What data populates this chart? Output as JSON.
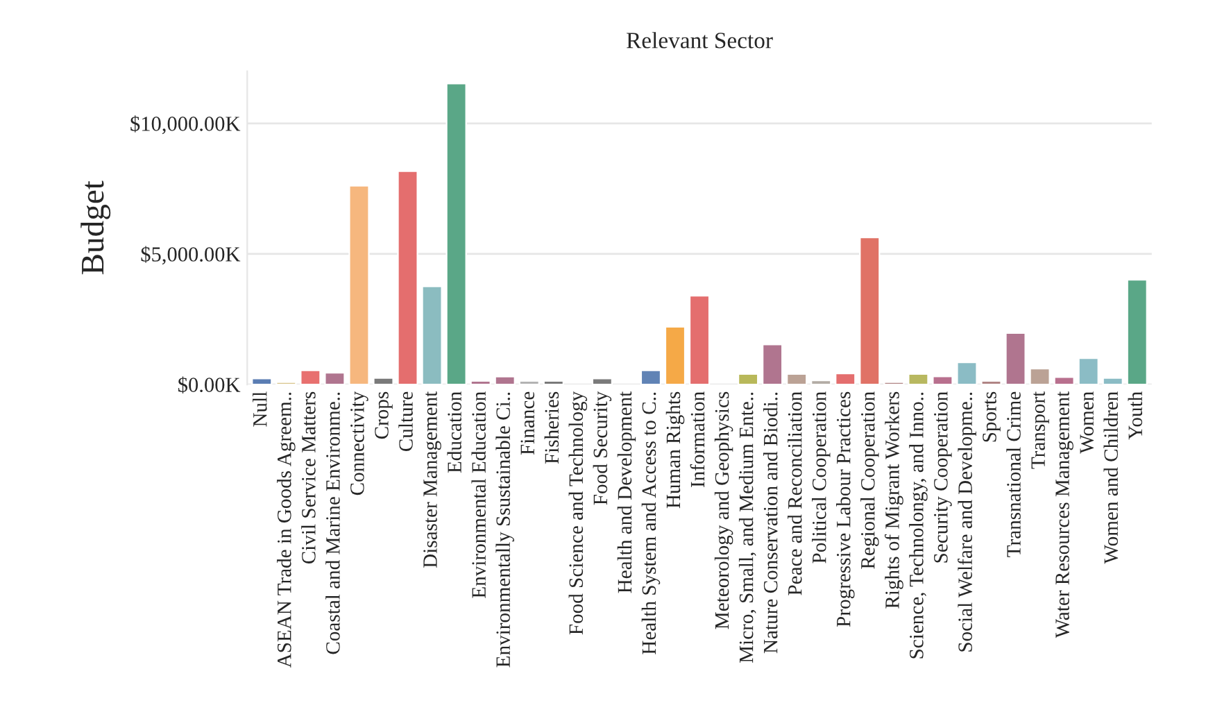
{
  "chart_data": {
    "type": "bar",
    "title": "Relevant Sector",
    "ylabel": "Budget",
    "categories": [
      "Null",
      "ASEAN Trade in Goods Agreem..",
      "Civil Service Matters",
      "Coastal and Marine Environme..",
      "Connectivity",
      "Crops",
      "Culture",
      "Disaster Management",
      "Education",
      "Environmental Education",
      "Environmentally Ssustainable Ci..",
      "Finance",
      "Fisheries",
      "Food Science and Technology",
      "Food Security",
      "Health and Development",
      "Health System and Access to C..",
      "Human Rights",
      "Information",
      "Meteorology and Geophysics",
      "Micro, Small, and Medium Ente..",
      "Nature Conservation and Biodi..",
      "Peace and Reconciliation",
      "Political Cooperation",
      "Progressive Labour Practices",
      "Regional Cooperation",
      "Rights of Migrant Workers",
      "Science, Technolongy, and Inno..",
      "Security Cooperation",
      "Social Welfare and Developme..",
      "Sports",
      "Transnational Crime",
      "Transport",
      "Water Resources Management",
      "Women",
      "Women and Children",
      "Youth"
    ],
    "values": [
      230,
      90,
      540,
      450,
      7610,
      250,
      8170,
      3760,
      11530,
      140,
      300,
      140,
      140,
      null,
      230,
      null,
      540,
      2210,
      3400,
      null,
      400,
      1530,
      400,
      160,
      420,
      5630,
      90,
      400,
      310,
      850,
      140,
      1970,
      610,
      280,
      1010,
      250,
      4010
    ],
    "colors": [
      "#5a7db3",
      "#d8c48a",
      "#e8706f",
      "#b0758f",
      "#f6b77e",
      "#7a7a7a",
      "#e46e6e",
      "#8bbcc0",
      "#5aa787",
      "#b0758f",
      "#b0758f",
      "#b3b3b3",
      "#7a7a7a",
      null,
      "#7a7a7a",
      null,
      "#6083b5",
      "#f5a947",
      "#e46e6e",
      null,
      "#b8b85a",
      "#b0758f",
      "#bba295",
      "#b3aca5",
      "#e46e6e",
      "#e07266",
      "#b08585",
      "#b8b860",
      "#b8708e",
      "#8bbcc5",
      "#b08585",
      "#b0758f",
      "#bba295",
      "#b8708e",
      "#8bbcc5",
      "#8bbcc5",
      "#5aa787"
    ],
    "ylim": [
      0,
      12000
    ],
    "yticks": [
      {
        "value": 0,
        "label": "$0.00K"
      },
      {
        "value": 5000,
        "label": "$5,000.00K"
      },
      {
        "value": 10000,
        "label": "$10,000.00K"
      }
    ],
    "grid": "y",
    "legend": false
  }
}
